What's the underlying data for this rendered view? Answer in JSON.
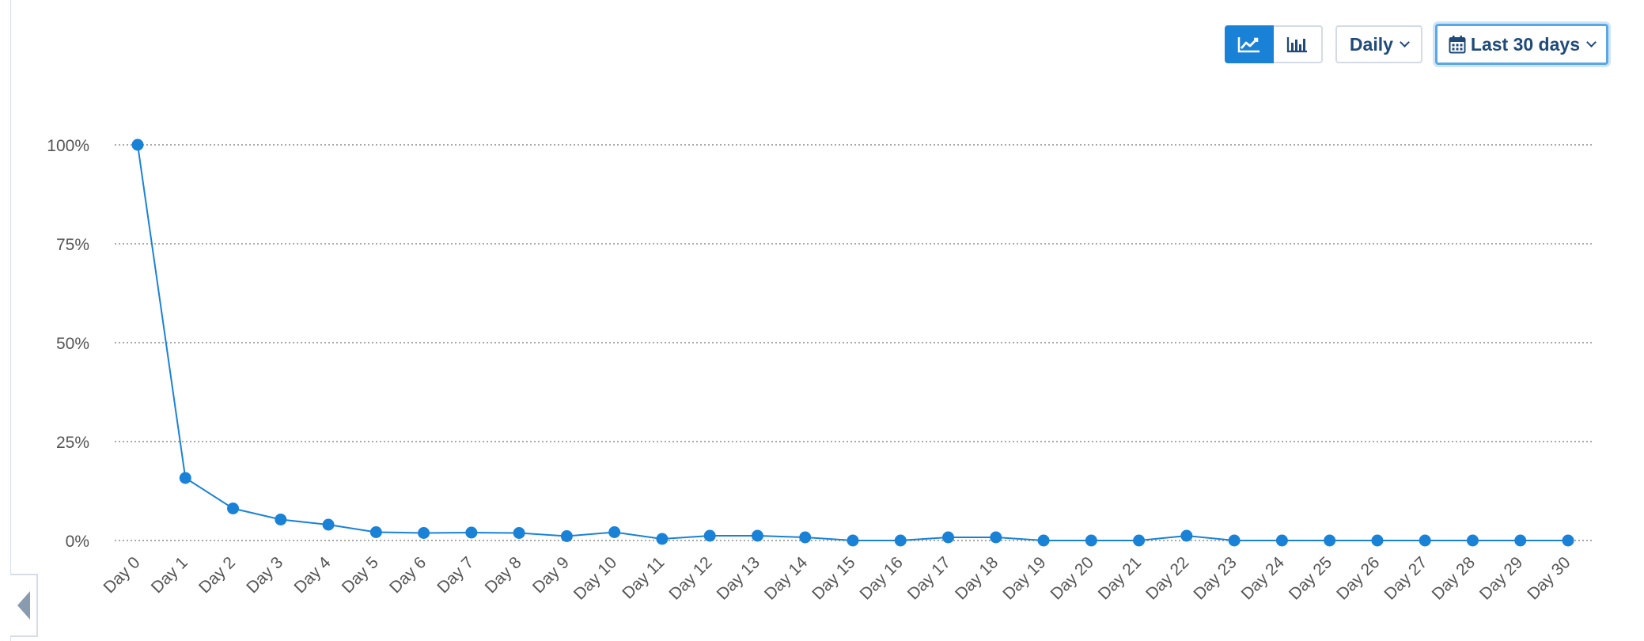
{
  "toolbar": {
    "line_view_icon": "line-chart-icon",
    "bar_view_icon": "bar-chart-icon",
    "interval_label": "Daily",
    "range_label": "Last 30 days",
    "calendar_icon": "calendar-icon"
  },
  "colors": {
    "accent": "#1a82d6",
    "series": "#1a82d6",
    "grid": "#8c8c8c",
    "axis_text": "#555555",
    "button_text": "#1f4a7a"
  },
  "chart_data": {
    "type": "line",
    "title": "",
    "xlabel": "",
    "ylabel": "",
    "categories": [
      "Day 0",
      "Day 1",
      "Day 2",
      "Day 3",
      "Day 4",
      "Day 5",
      "Day 6",
      "Day 7",
      "Day 8",
      "Day 9",
      "Day 10",
      "Day 11",
      "Day 12",
      "Day 13",
      "Day 14",
      "Day 15",
      "Day 16",
      "Day 17",
      "Day 18",
      "Day 19",
      "Day 20",
      "Day 21",
      "Day 22",
      "Day 23",
      "Day 24",
      "Day 25",
      "Day 26",
      "Day 27",
      "Day 28",
      "Day 29",
      "Day 30"
    ],
    "series": [
      {
        "values": [
          100,
          15.8,
          8.1,
          5.3,
          4.0,
          2.1,
          1.9,
          2.0,
          1.9,
          1.1,
          2.1,
          0.4,
          1.2,
          1.2,
          0.8,
          0,
          0,
          0.8,
          0.8,
          0,
          0,
          0,
          1.2,
          0,
          0,
          0,
          0,
          0,
          0,
          0,
          0
        ]
      }
    ],
    "ylim": [
      0,
      100
    ],
    "yticks": [
      "0%",
      "25%",
      "50%",
      "75%",
      "100%"
    ],
    "ytick_values": [
      0,
      25,
      50,
      75,
      100
    ],
    "grid": true,
    "grid_style": "dotted",
    "legend": "none"
  }
}
